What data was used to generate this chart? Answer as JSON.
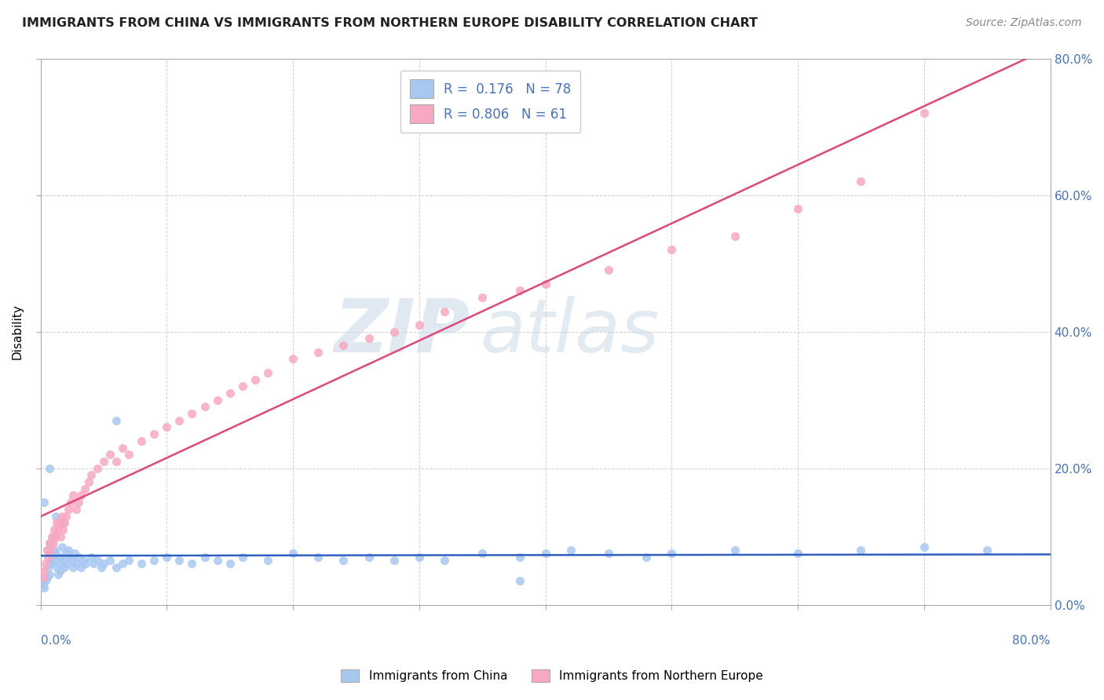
{
  "title": "IMMIGRANTS FROM CHINA VS IMMIGRANTS FROM NORTHERN EUROPE DISABILITY CORRELATION CHART",
  "source": "Source: ZipAtlas.com",
  "ylabel": "Disability",
  "legend_china": "Immigrants from China",
  "legend_ne": "Immigrants from Northern Europe",
  "china_R": 0.176,
  "china_N": 78,
  "ne_R": 0.806,
  "ne_N": 61,
  "china_color": "#a8c8f0",
  "ne_color": "#f8a8c0",
  "china_line_color": "#3060c0",
  "ne_line_color": "#e04878",
  "watermark_zip": "ZIP",
  "watermark_atlas": "atlas",
  "xlim": [
    0.0,
    0.8
  ],
  "ylim": [
    0.0,
    0.8
  ],
  "china_x": [
    0.002,
    0.003,
    0.004,
    0.005,
    0.005,
    0.006,
    0.007,
    0.008,
    0.008,
    0.009,
    0.01,
    0.01,
    0.011,
    0.012,
    0.013,
    0.014,
    0.015,
    0.015,
    0.016,
    0.017,
    0.018,
    0.019,
    0.02,
    0.021,
    0.022,
    0.023,
    0.025,
    0.026,
    0.027,
    0.028,
    0.03,
    0.032,
    0.034,
    0.036,
    0.04,
    0.042,
    0.045,
    0.048,
    0.05,
    0.055,
    0.06,
    0.065,
    0.07,
    0.08,
    0.09,
    0.1,
    0.11,
    0.12,
    0.13,
    0.14,
    0.15,
    0.16,
    0.18,
    0.2,
    0.22,
    0.24,
    0.26,
    0.28,
    0.3,
    0.32,
    0.35,
    0.38,
    0.4,
    0.42,
    0.45,
    0.48,
    0.5,
    0.55,
    0.6,
    0.65,
    0.7,
    0.75,
    0.003,
    0.007,
    0.012,
    0.018,
    0.06,
    0.38
  ],
  "china_y": [
    0.03,
    0.025,
    0.035,
    0.04,
    0.08,
    0.055,
    0.045,
    0.06,
    0.09,
    0.07,
    0.065,
    0.1,
    0.08,
    0.075,
    0.055,
    0.045,
    0.07,
    0.06,
    0.05,
    0.085,
    0.065,
    0.055,
    0.075,
    0.06,
    0.08,
    0.07,
    0.065,
    0.055,
    0.075,
    0.06,
    0.07,
    0.055,
    0.065,
    0.06,
    0.07,
    0.06,
    0.065,
    0.055,
    0.06,
    0.065,
    0.055,
    0.06,
    0.065,
    0.06,
    0.065,
    0.07,
    0.065,
    0.06,
    0.07,
    0.065,
    0.06,
    0.07,
    0.065,
    0.075,
    0.07,
    0.065,
    0.07,
    0.065,
    0.07,
    0.065,
    0.075,
    0.07,
    0.075,
    0.08,
    0.075,
    0.07,
    0.075,
    0.08,
    0.075,
    0.08,
    0.085,
    0.08,
    0.15,
    0.2,
    0.13,
    0.12,
    0.27,
    0.035
  ],
  "ne_x": [
    0.002,
    0.003,
    0.004,
    0.005,
    0.006,
    0.007,
    0.008,
    0.009,
    0.01,
    0.011,
    0.012,
    0.013,
    0.014,
    0.015,
    0.016,
    0.017,
    0.018,
    0.019,
    0.02,
    0.022,
    0.024,
    0.026,
    0.028,
    0.03,
    0.032,
    0.035,
    0.038,
    0.04,
    0.045,
    0.05,
    0.055,
    0.06,
    0.065,
    0.07,
    0.08,
    0.09,
    0.1,
    0.11,
    0.12,
    0.13,
    0.14,
    0.15,
    0.16,
    0.17,
    0.18,
    0.2,
    0.22,
    0.24,
    0.26,
    0.28,
    0.3,
    0.32,
    0.35,
    0.38,
    0.4,
    0.45,
    0.5,
    0.55,
    0.6,
    0.65,
    0.7
  ],
  "ne_y": [
    0.04,
    0.05,
    0.06,
    0.08,
    0.07,
    0.09,
    0.08,
    0.1,
    0.09,
    0.11,
    0.1,
    0.12,
    0.11,
    0.12,
    0.1,
    0.13,
    0.11,
    0.12,
    0.13,
    0.14,
    0.15,
    0.16,
    0.14,
    0.15,
    0.16,
    0.17,
    0.18,
    0.19,
    0.2,
    0.21,
    0.22,
    0.21,
    0.23,
    0.22,
    0.24,
    0.25,
    0.26,
    0.27,
    0.28,
    0.29,
    0.3,
    0.31,
    0.32,
    0.33,
    0.34,
    0.36,
    0.37,
    0.38,
    0.39,
    0.4,
    0.41,
    0.43,
    0.45,
    0.46,
    0.47,
    0.49,
    0.52,
    0.54,
    0.58,
    0.62,
    0.72
  ]
}
